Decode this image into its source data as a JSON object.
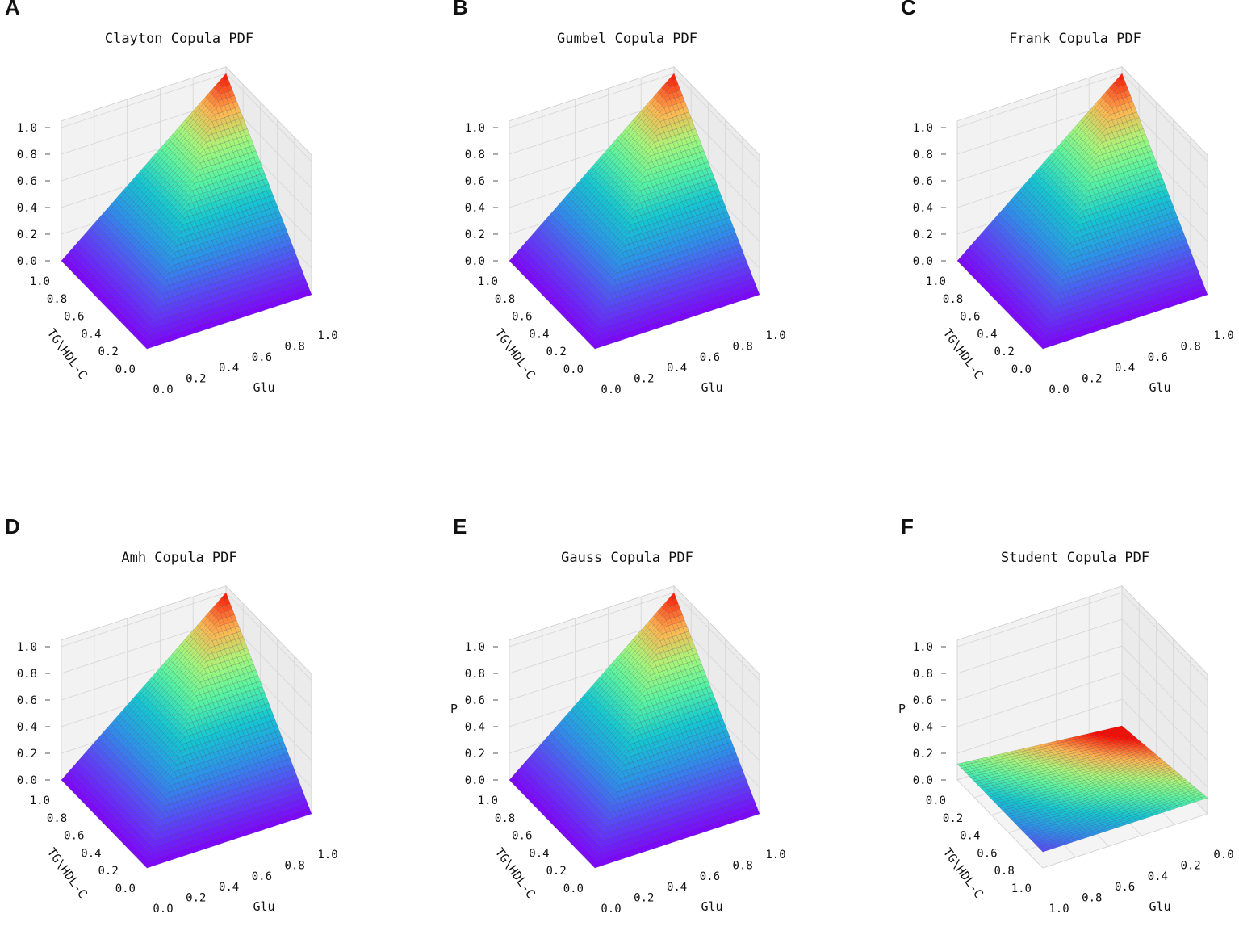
{
  "chart_data": [
    {
      "panel": "A",
      "type": "surface3d",
      "title": "Clayton Copula PDF",
      "xlabel": "Glu",
      "ylabel": "TG\\HDL-C",
      "zlabel": "",
      "x_ticks": [
        "0.0",
        "0.2",
        "0.4",
        "0.6",
        "0.8",
        "1.0"
      ],
      "y_ticks": [
        "0.0",
        "0.2",
        "0.4",
        "0.6",
        "0.8",
        "1.0"
      ],
      "z_ticks": [
        "0.0",
        "0.2",
        "0.4",
        "0.6",
        "0.8",
        "1.0"
      ],
      "xlim": [
        0,
        1
      ],
      "ylim": [
        0,
        1
      ],
      "zlim": [
        0,
        1
      ],
      "function": "min(u, v)",
      "reversed_axes": false,
      "colormap": "rainbow"
    },
    {
      "panel": "B",
      "type": "surface3d",
      "title": "Gumbel Copula PDF",
      "xlabel": "Glu",
      "ylabel": "TG\\HDL-C",
      "zlabel": "",
      "x_ticks": [
        "0.0",
        "0.2",
        "0.4",
        "0.6",
        "0.8",
        "1.0"
      ],
      "y_ticks": [
        "0.0",
        "0.2",
        "0.4",
        "0.6",
        "0.8",
        "1.0"
      ],
      "z_ticks": [
        "0.0",
        "0.2",
        "0.4",
        "0.6",
        "0.8",
        "1.0"
      ],
      "xlim": [
        0,
        1
      ],
      "ylim": [
        0,
        1
      ],
      "zlim": [
        0,
        1
      ],
      "function": "min(u, v)",
      "reversed_axes": false,
      "colormap": "rainbow"
    },
    {
      "panel": "C",
      "type": "surface3d",
      "title": "Frank Copula PDF",
      "xlabel": "Glu",
      "ylabel": "TG\\HDL-C",
      "zlabel": "",
      "x_ticks": [
        "0.0",
        "0.2",
        "0.4",
        "0.6",
        "0.8",
        "1.0"
      ],
      "y_ticks": [
        "0.0",
        "0.2",
        "0.4",
        "0.6",
        "0.8",
        "1.0"
      ],
      "z_ticks": [
        "0.0",
        "0.2",
        "0.4",
        "0.6",
        "0.8",
        "1.0"
      ],
      "xlim": [
        0,
        1
      ],
      "ylim": [
        0,
        1
      ],
      "zlim": [
        0,
        1
      ],
      "function": "min(u, v)",
      "reversed_axes": false,
      "colormap": "rainbow"
    },
    {
      "panel": "D",
      "type": "surface3d",
      "title": "Amh Copula PDF",
      "xlabel": "Glu",
      "ylabel": "TG\\HDL-C",
      "zlabel": "",
      "x_ticks": [
        "0.0",
        "0.2",
        "0.4",
        "0.6",
        "0.8",
        "1.0"
      ],
      "y_ticks": [
        "0.0",
        "0.2",
        "0.4",
        "0.6",
        "0.8",
        "1.0"
      ],
      "z_ticks": [
        "0.0",
        "0.2",
        "0.4",
        "0.6",
        "0.8",
        "1.0"
      ],
      "xlim": [
        0,
        1
      ],
      "ylim": [
        0,
        1
      ],
      "zlim": [
        0,
        1
      ],
      "function": "min(u, v)",
      "reversed_axes": false,
      "colormap": "rainbow"
    },
    {
      "panel": "E",
      "type": "surface3d",
      "title": "Gauss Copula PDF",
      "xlabel": "Glu",
      "ylabel": "TG\\HDL-C",
      "zlabel": "P",
      "x_ticks": [
        "0.0",
        "0.2",
        "0.4",
        "0.6",
        "0.8",
        "1.0"
      ],
      "y_ticks": [
        "0.0",
        "0.2",
        "0.4",
        "0.6",
        "0.8",
        "1.0"
      ],
      "z_ticks": [
        "0.0",
        "0.2",
        "0.4",
        "0.6",
        "0.8",
        "1.0"
      ],
      "xlim": [
        0,
        1
      ],
      "ylim": [
        0,
        1
      ],
      "zlim": [
        0,
        1
      ],
      "function": "min(u, v)",
      "reversed_axes": false,
      "colormap": "rainbow"
    },
    {
      "panel": "F",
      "type": "surface3d",
      "title": "Student Copula PDF",
      "xlabel": "Glu",
      "ylabel": "TG\\HDL-C",
      "zlabel": "P",
      "x_ticks": [
        "1.0",
        "0.8",
        "0.6",
        "0.4",
        "0.2",
        "0.0"
      ],
      "y_ticks": [
        "1.0",
        "0.8",
        "0.6",
        "0.4",
        "0.2",
        "0.0"
      ],
      "z_ticks": [
        "0.0",
        "0.2",
        "0.4",
        "0.6",
        "0.8",
        "1.0"
      ],
      "xlim": [
        1,
        0
      ],
      "ylim": [
        1,
        0
      ],
      "zlim": [
        0,
        1
      ],
      "function": "student_flat",
      "surface_range": [
        0.0,
        0.12
      ],
      "reversed_axes": true,
      "colormap": "rainbow"
    }
  ]
}
